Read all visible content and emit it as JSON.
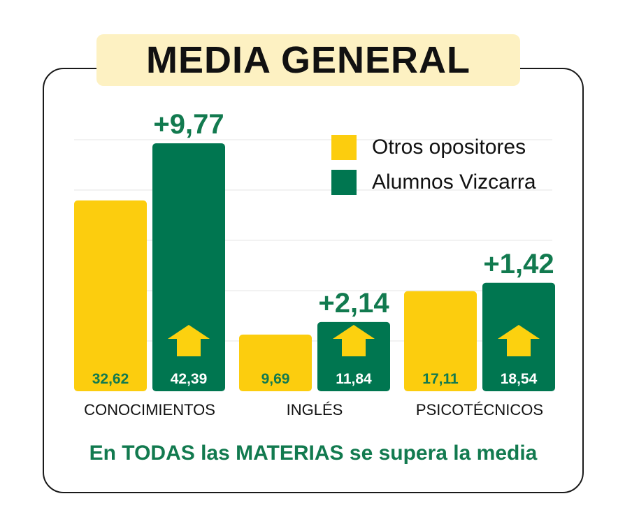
{
  "title": "MEDIA GENERAL",
  "footer": "En TODAS las MATERIAS se supera la media",
  "colors": {
    "otros": "#fccd0e",
    "alumnos": "#007650",
    "delta": "#127a4f",
    "arrow": "#fcd10f",
    "grid": "#e6e6e6"
  },
  "icons": [
    "up-arrow-icon"
  ],
  "chart_data": {
    "type": "bar",
    "categories": [
      "CONOCIMIENTOS",
      "INGLÉS",
      "PSICOTÉCNICOS"
    ],
    "series": [
      {
        "name": "Otros opositores",
        "values": [
          32.62,
          9.69,
          17.11
        ],
        "labels": [
          "32,62",
          "9,69",
          "17,11"
        ]
      },
      {
        "name": "Alumnos Vizcarra",
        "values": [
          42.39,
          11.84,
          18.54
        ],
        "labels": [
          "42,39",
          "11,84",
          "18,54"
        ]
      }
    ],
    "differences": [
      "+9,77",
      "+2,14",
      "+1,42"
    ],
    "ylim": [
      0,
      43
    ],
    "grid": true,
    "legend": "top-right",
    "title": "MEDIA GENERAL",
    "xlabel": "",
    "ylabel": ""
  }
}
